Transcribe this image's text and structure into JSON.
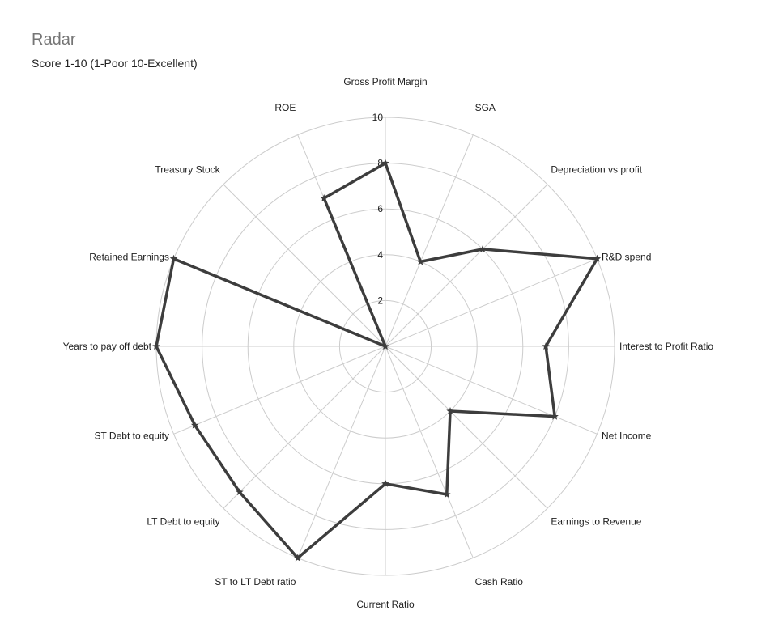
{
  "chart_data": {
    "type": "radar",
    "title": "Radar",
    "subtitle": "Score 1-10 (1-Poor 10-Excellent)",
    "categories": [
      "Gross Profit Margin",
      "SGA",
      "Depreciation vs profit",
      "R&D spend",
      "Interest to Profit Ratio",
      "Net Income",
      "Earnings to Revenue",
      "Cash Ratio",
      "Current Ratio",
      "ST to LT Debt ratio",
      "LT Debt to equity",
      "ST Debt to equity",
      "Years to pay off debt",
      "Retained Earnings",
      "Treasury Stock",
      "ROE"
    ],
    "series": [
      {
        "values": [
          8,
          4,
          6,
          10,
          7,
          8,
          4,
          7,
          6,
          10,
          9,
          9,
          10,
          10,
          0,
          7
        ]
      }
    ],
    "rlim": [
      0,
      10
    ],
    "ticks": [
      "2",
      "4",
      "6",
      "8",
      "10"
    ],
    "grid": true,
    "colors": {
      "series": "#3d3d3d",
      "grid": "#cccccc"
    }
  }
}
